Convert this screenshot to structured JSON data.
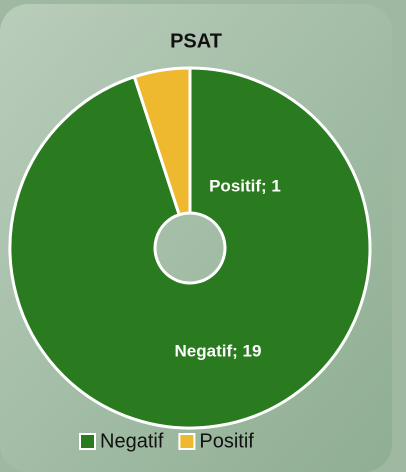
{
  "chart_data": {
    "type": "donut",
    "title": "PSAT",
    "categories": [
      "Negatif",
      "Positif"
    ],
    "values": [
      19,
      1
    ],
    "value_labels": [
      "Negatif; 19",
      "Positif; 1"
    ],
    "colors": [
      "#2a7a1f",
      "#efb92f"
    ],
    "legend": "bottom"
  }
}
